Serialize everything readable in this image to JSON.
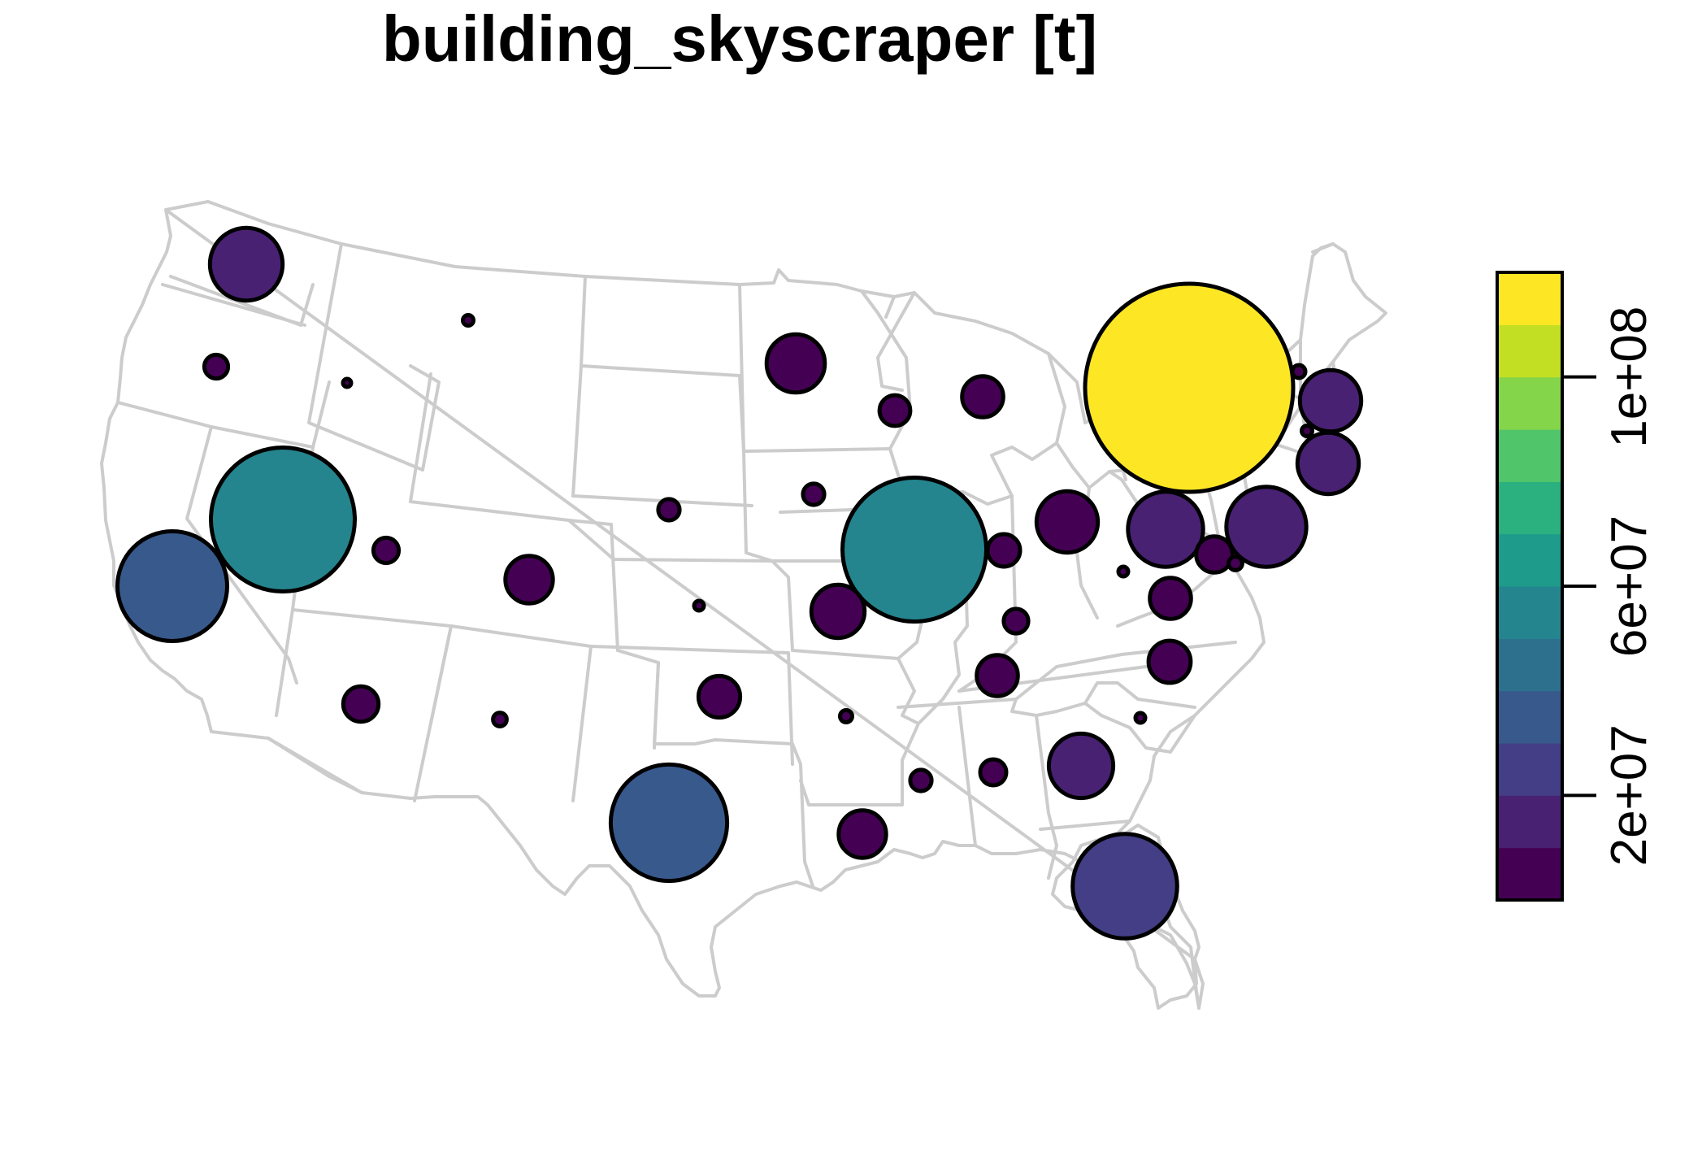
{
  "map": {
    "title": "building_skyscraper [t]",
    "variable": "building_skyscraper",
    "unit": "t",
    "base_map": "Contiguous United States state boundaries",
    "boundary_color": "#cccccc",
    "symbol_outline_color": "#000000"
  },
  "legend": {
    "type": "colorbar",
    "tick_labels": [
      "2e+07",
      "6e+07",
      "1e+08"
    ],
    "tick_values": [
      20000000,
      60000000,
      100000000
    ],
    "range": [
      0,
      120000000
    ],
    "bins": [
      {
        "from": 0,
        "to": 10000000,
        "color": "#440154"
      },
      {
        "from": 10000000,
        "to": 20000000,
        "color": "#482173"
      },
      {
        "from": 20000000,
        "to": 30000000,
        "color": "#433E85"
      },
      {
        "from": 30000000,
        "to": 40000000,
        "color": "#38598C"
      },
      {
        "from": 40000000,
        "to": 50000000,
        "color": "#2D708E"
      },
      {
        "from": 50000000,
        "to": 60000000,
        "color": "#25858E"
      },
      {
        "from": 60000000,
        "to": 70000000,
        "color": "#1E9B8A"
      },
      {
        "from": 70000000,
        "to": 80000000,
        "color": "#2BB07F"
      },
      {
        "from": 80000000,
        "to": 90000000,
        "color": "#51C56A"
      },
      {
        "from": 90000000,
        "to": 100000000,
        "color": "#85D54A"
      },
      {
        "from": 100000000,
        "to": 110000000,
        "color": "#C2DF23"
      },
      {
        "from": 110000000,
        "to": 120000000,
        "color": "#FDE725"
      }
    ]
  },
  "chart_data": {
    "type": "proportional-symbol map",
    "title": "building_skyscraper [t]",
    "value_unit": "t",
    "points": [
      {
        "state": "WA",
        "value": 14000000,
        "color": "#482173"
      },
      {
        "state": "OR",
        "value": 1500000,
        "color": "#440154"
      },
      {
        "state": "ID",
        "value": 150000,
        "color": "#440154"
      },
      {
        "state": "MT",
        "value": 300000,
        "color": "#440154"
      },
      {
        "state": "CA",
        "value": 32000000,
        "color": "#38598C"
      },
      {
        "state": "NV",
        "value": 55000000,
        "color": "#25858E"
      },
      {
        "state": "UT",
        "value": 1700000,
        "color": "#440154"
      },
      {
        "state": "AZ",
        "value": 3300000,
        "color": "#440154"
      },
      {
        "state": "CO",
        "value": 6000000,
        "color": "#440154"
      },
      {
        "state": "NM",
        "value": 500000,
        "color": "#440154"
      },
      {
        "state": "NE",
        "value": 1200000,
        "color": "#440154"
      },
      {
        "state": "KS",
        "value": 250000,
        "color": "#440154"
      },
      {
        "state": "OK",
        "value": 4600000,
        "color": "#440154"
      },
      {
        "state": "TX",
        "value": 36000000,
        "color": "#38598C"
      },
      {
        "state": "MN",
        "value": 9000000,
        "color": "#440154"
      },
      {
        "state": "IA",
        "value": 1200000,
        "color": "#440154"
      },
      {
        "state": "MO",
        "value": 7500000,
        "color": "#440154"
      },
      {
        "state": "AR",
        "value": 400000,
        "color": "#440154"
      },
      {
        "state": "LA",
        "value": 6000000,
        "color": "#440154"
      },
      {
        "state": "WI",
        "value": 2500000,
        "color": "#440154"
      },
      {
        "state": "IL",
        "value": 55000000,
        "color": "#25858E"
      },
      {
        "state": "MI",
        "value": 4500000,
        "color": "#440154"
      },
      {
        "state": "IN",
        "value": 2800000,
        "color": "#440154"
      },
      {
        "state": "KY",
        "value": 1600000,
        "color": "#440154"
      },
      {
        "state": "TN",
        "value": 4500000,
        "color": "#440154"
      },
      {
        "state": "MS",
        "value": 1200000,
        "color": "#440154"
      },
      {
        "state": "AL",
        "value": 1800000,
        "color": "#440154"
      },
      {
        "state": "GA",
        "value": 11000000,
        "color": "#482173"
      },
      {
        "state": "FL",
        "value": 29000000,
        "color": "#433E85"
      },
      {
        "state": "OH",
        "value": 10000000,
        "color": "#440154"
      },
      {
        "state": "WV",
        "value": 250000,
        "color": "#440154"
      },
      {
        "state": "VA",
        "value": 4500000,
        "color": "#440154"
      },
      {
        "state": "NC",
        "value": 4700000,
        "color": "#440154"
      },
      {
        "state": "SC",
        "value": 250000,
        "color": "#440154"
      },
      {
        "state": "PA",
        "value": 15000000,
        "color": "#482173"
      },
      {
        "state": "NY",
        "value": 115000000,
        "color": "#FDE725"
      },
      {
        "state": "NJ",
        "value": 17000000,
        "color": "#482173"
      },
      {
        "state": "MD",
        "value": 3500000,
        "color": "#440154"
      },
      {
        "state": "DE",
        "value": 500000,
        "color": "#440154"
      },
      {
        "state": "CT",
        "value": 300000,
        "color": "#440154"
      },
      {
        "state": "VT",
        "value": 450000,
        "color": "#440154"
      },
      {
        "state": "MA",
        "value": 10000000,
        "color": "#482173"
      },
      {
        "state": "RI",
        "value": 10000000,
        "color": "#482173"
      }
    ]
  }
}
